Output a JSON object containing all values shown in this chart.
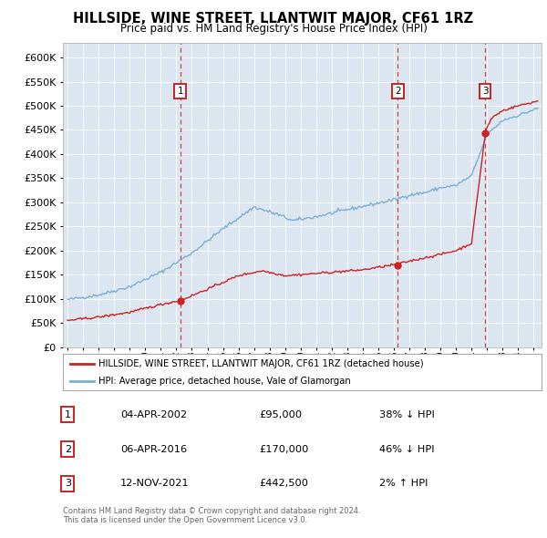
{
  "title": "HILLSIDE, WINE STREET, LLANTWIT MAJOR, CF61 1RZ",
  "subtitle": "Price paid vs. HM Land Registry's House Price Index (HPI)",
  "yticks": [
    0,
    50000,
    100000,
    150000,
    200000,
    250000,
    300000,
    350000,
    400000,
    450000,
    500000,
    550000,
    600000
  ],
  "xlim_start": 1994.7,
  "xlim_end": 2025.5,
  "ylim": [
    0,
    630000
  ],
  "bg_color": "#dce6f1",
  "hpi_color": "#7bafd4",
  "price_color": "#cc2222",
  "grid_color": "#ffffff",
  "sales": [
    {
      "date": 2002.25,
      "price": 95000,
      "label": "1"
    },
    {
      "date": 2016.25,
      "price": 170000,
      "label": "2"
    },
    {
      "date": 2021.87,
      "price": 442500,
      "label": "3"
    }
  ],
  "legend_entries": [
    "HILLSIDE, WINE STREET, LLANTWIT MAJOR, CF61 1RZ (detached house)",
    "HPI: Average price, detached house, Vale of Glamorgan"
  ],
  "table_rows": [
    {
      "num": "1",
      "date": "04-APR-2002",
      "price": "£95,000",
      "hpi": "38% ↓ HPI"
    },
    {
      "num": "2",
      "date": "06-APR-2016",
      "price": "£170,000",
      "hpi": "46% ↓ HPI"
    },
    {
      "num": "3",
      "date": "12-NOV-2021",
      "price": "£442,500",
      "hpi": "2% ↑ HPI"
    }
  ],
  "footer1": "Contains HM Land Registry data © Crown copyright and database right 2024.",
  "footer2": "This data is licensed under the Open Government Licence v3.0."
}
